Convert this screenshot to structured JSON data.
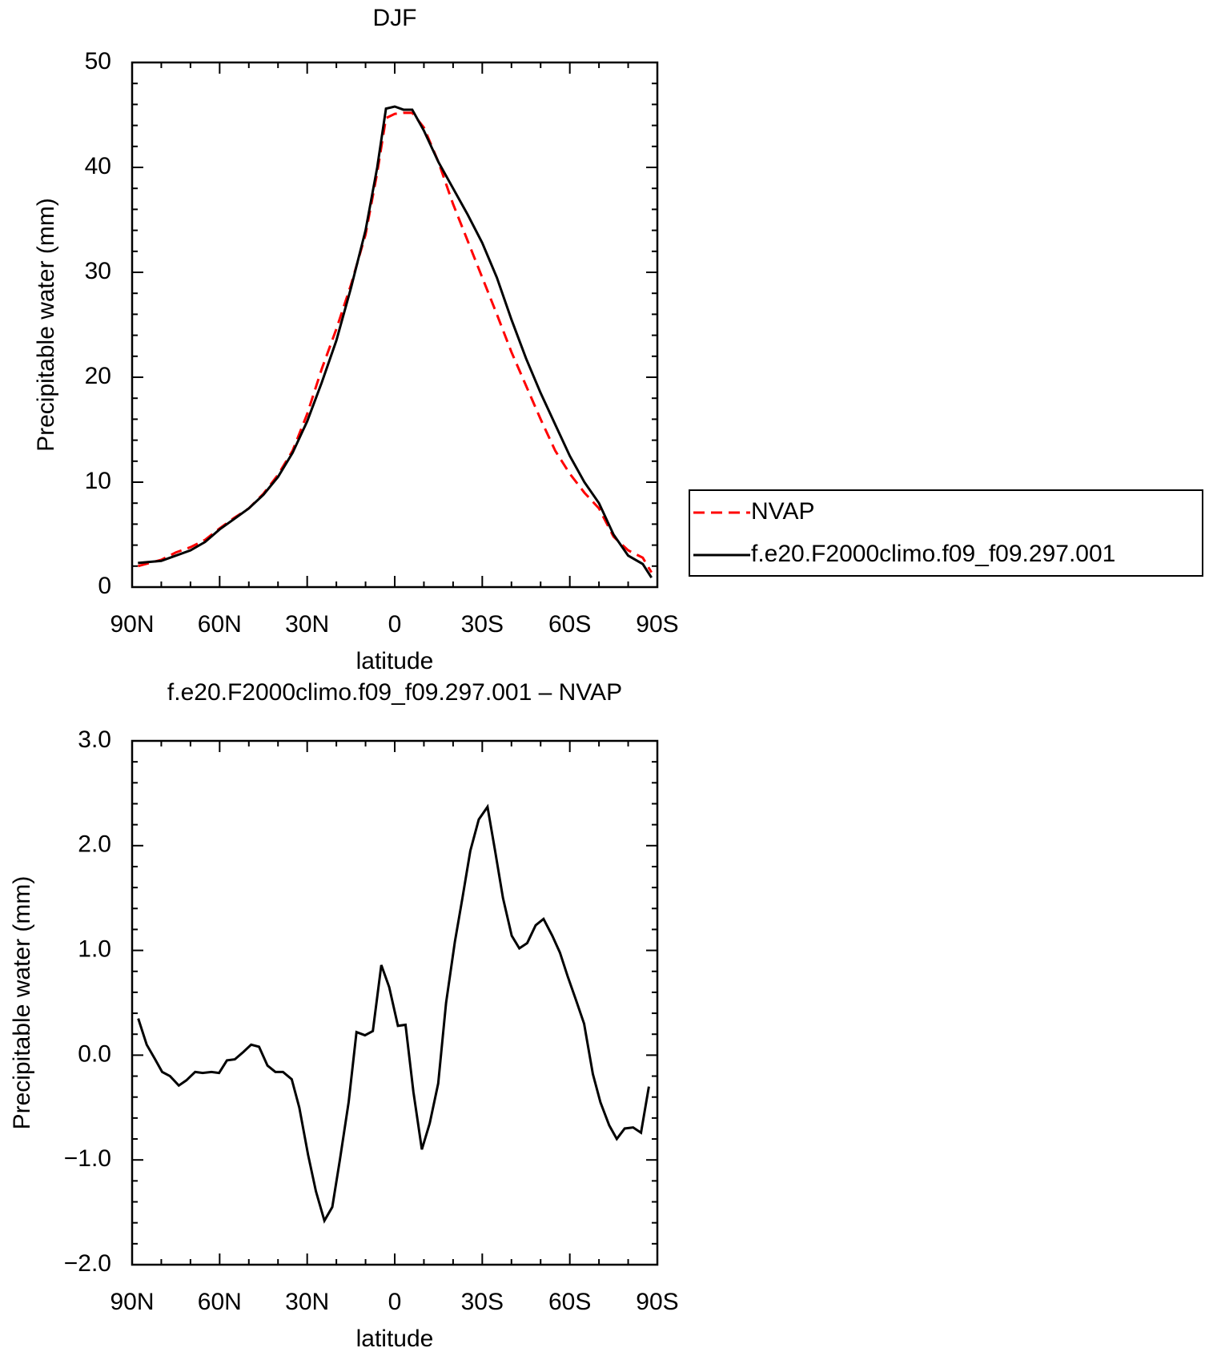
{
  "chart_data": [
    {
      "type": "line",
      "title": "DJF",
      "xlabel": "latitude",
      "ylabel": "Precipitable water (mm)",
      "x": [
        88,
        80,
        75,
        70,
        65,
        60,
        55,
        50,
        45,
        40,
        35,
        30,
        25,
        20,
        15,
        10,
        6,
        3,
        0,
        -3,
        -6,
        -10,
        -15,
        -20,
        -25,
        -30,
        -35,
        -40,
        -45,
        -50,
        -55,
        -60,
        -65,
        -70,
        -75,
        -80,
        -85,
        -88
      ],
      "series": [
        {
          "name": "NVAP",
          "color": "#ff0000",
          "dash": "dashed",
          "values": [
            2.0,
            2.6,
            3.3,
            3.8,
            4.5,
            5.6,
            6.6,
            7.5,
            8.9,
            10.7,
            13.0,
            16.5,
            20.8,
            24.6,
            28.8,
            33.6,
            39.5,
            44.7,
            45.1,
            45.2,
            45.2,
            43.8,
            40.5,
            36.5,
            33,
            29.5,
            26,
            22.4,
            19.2,
            16,
            13,
            10.8,
            9,
            7.5,
            4.8,
            3.5,
            2.8,
            1.4
          ]
        },
        {
          "name": "f.e20.F2000climo.f09_f09.297.001",
          "color": "#000000",
          "dash": "solid",
          "values": [
            2.3,
            2.5,
            3.0,
            3.5,
            4.3,
            5.5,
            6.5,
            7.5,
            8.8,
            10.5,
            12.8,
            15.8,
            19.5,
            23.5,
            28.5,
            34,
            40,
            45.6,
            45.8,
            45.5,
            45.5,
            43.5,
            40.5,
            38,
            35.5,
            32.8,
            29.5,
            25.5,
            21.8,
            18.5,
            15.5,
            12.5,
            10,
            8,
            5,
            3,
            2.2,
            0.9
          ]
        }
      ],
      "xlim": [
        90,
        -90
      ],
      "xticks": [
        {
          "value": 90,
          "label": "90N"
        },
        {
          "value": 60,
          "label": "60N"
        },
        {
          "value": 30,
          "label": "30N"
        },
        0,
        {
          "value": -30,
          "label": "30S"
        },
        {
          "value": -60,
          "label": "60S"
        },
        {
          "value": -90,
          "label": "90S"
        }
      ],
      "ylim": [
        0,
        50
      ],
      "yticks": [
        0,
        10,
        20,
        30,
        40,
        50
      ],
      "legend": "right"
    },
    {
      "type": "line",
      "title": "f.e20.F2000climo.f09_f09.297.001 – NVAP",
      "xlabel": "latitude",
      "ylabel": "Precipitable water (mm)",
      "x": [
        87.9,
        85.0,
        82.3,
        79.7,
        77.0,
        74.0,
        71.4,
        68.4,
        65.8,
        62.8,
        60.2,
        57.5,
        54.8,
        51.9,
        49.2,
        46.5,
        43.6,
        40.9,
        38.3,
        35.3,
        32.7,
        29.7,
        27.0,
        24.1,
        21.4,
        18.8,
        15.8,
        13.1,
        10.2,
        7.5,
        4.6,
        1.9,
        -1.1,
        -3.7,
        -6.4,
        -9.3,
        -12.0,
        -14.9,
        -17.6,
        -20.6,
        -23.2,
        -25.9,
        -28.8,
        -31.8,
        -34.4,
        -37.1,
        -40.1,
        -42.7,
        -45.4,
        -48.3,
        -51.0,
        -54.0,
        -56.6,
        -59.3,
        -62.2,
        -64.9,
        -67.9,
        -70.5,
        -73.5,
        -76.1,
        -78.8,
        -81.7,
        -84.4,
        -87.1
      ],
      "series": [
        {
          "color": "#000000",
          "dash": "solid",
          "values": [
            0.35,
            0.1,
            -0.03,
            -0.16,
            -0.2,
            -0.29,
            -0.24,
            -0.16,
            -0.17,
            -0.16,
            -0.17,
            -0.05,
            -0.04,
            0.03,
            0.1,
            0.08,
            -0.1,
            -0.16,
            -0.16,
            -0.23,
            -0.5,
            -0.95,
            -1.3,
            -1.58,
            -1.45,
            -1.0,
            -0.45,
            0.22,
            0.19,
            0.23,
            0.86,
            0.65,
            0.28,
            0.29,
            -0.35,
            -0.9,
            -0.65,
            -0.27,
            0.5,
            1.08,
            1.5,
            1.95,
            2.25,
            2.37,
            1.95,
            1.5,
            1.14,
            1.02,
            1.07,
            1.24,
            1.3,
            1.14,
            0.98,
            0.75,
            0.52,
            0.3,
            -0.18,
            -0.45,
            -0.67,
            -0.8,
            -0.7,
            -0.69,
            -0.74,
            -0.3
          ]
        }
      ],
      "xlim": [
        90,
        -90
      ],
      "xticks": [
        {
          "value": 90,
          "label": "90N"
        },
        {
          "value": 60,
          "label": "60N"
        },
        {
          "value": 30,
          "label": "30N"
        },
        0,
        {
          "value": -30,
          "label": "30S"
        },
        {
          "value": -60,
          "label": "60S"
        },
        {
          "value": -90,
          "label": "90S"
        }
      ],
      "ylim": [
        -2,
        3
      ],
      "yticks": [
        {
          "value": -2,
          "label": "−2.0"
        },
        {
          "value": -1,
          "label": "−1.0"
        },
        {
          "value": 0,
          "label": "0.0"
        },
        {
          "value": 1,
          "label": "1.0"
        },
        {
          "value": 2,
          "label": "2.0"
        },
        {
          "value": 3,
          "label": "3.0"
        }
      ]
    }
  ]
}
